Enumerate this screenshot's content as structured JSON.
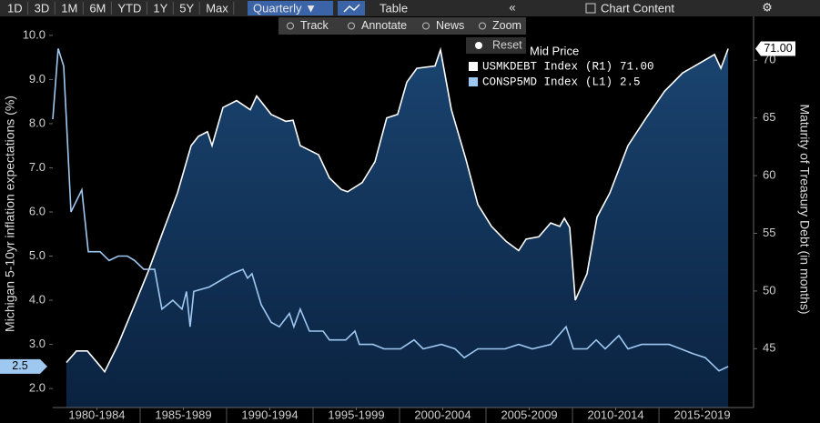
{
  "toolbar": {
    "ranges": [
      "1D",
      "3D",
      "1M",
      "6M",
      "YTD",
      "1Y",
      "5Y",
      "Max"
    ],
    "period": "Quarterly ▼",
    "table": "Table",
    "collapse": "«",
    "chart_content": "Chart Content",
    "settings": "⚙",
    "tools": [
      "Track",
      "Annotate",
      "News",
      "Zoom"
    ],
    "reset": "Reset"
  },
  "chart_data": {
    "type": "line",
    "legend_title": "Mid Price",
    "ylabel": "Michigan 5-10yr inflation expectations (%)",
    "y2label": "Maturity of Treasury Debt (in months)",
    "xlim": [
      1979.95,
      2020.47
    ],
    "xticks": [
      {
        "value": 1982.5,
        "label": "1980-1984"
      },
      {
        "value": 1987.5,
        "label": "1985-1989"
      },
      {
        "value": 1992.5,
        "label": "1990-1994"
      },
      {
        "value": 1997.5,
        "label": "1995-1999"
      },
      {
        "value": 2002.5,
        "label": "2000-2004"
      },
      {
        "value": 2007.5,
        "label": "2005-2009"
      },
      {
        "value": 2012.5,
        "label": "2010-2014"
      },
      {
        "value": 2017.5,
        "label": "2015-2019"
      }
    ],
    "ylim": [
      1.57,
      10.43
    ],
    "yticks": [
      {
        "value": 2,
        "label": "2.0"
      },
      {
        "value": 3,
        "label": "3.0"
      },
      {
        "value": 4,
        "label": "4.0"
      },
      {
        "value": 5,
        "label": "5.0"
      },
      {
        "value": 6,
        "label": "6.0"
      },
      {
        "value": 7,
        "label": "7.0"
      },
      {
        "value": 8,
        "label": "8.0"
      },
      {
        "value": 9,
        "label": "9.0"
      },
      {
        "value": 10,
        "label": "10.0"
      }
    ],
    "y2lim": [
      39.9,
      73.8
    ],
    "y2ticks": [
      45,
      50,
      55,
      60,
      65,
      70
    ],
    "series": [
      {
        "name": "USMKDEBT Index",
        "axis_tag": "(R1)",
        "last_label": "71.00",
        "axis": "y2",
        "color": "#ffffff",
        "area": true,
        "x": [
          1980.74,
          1981.32,
          1981.95,
          1982.68,
          1982.95,
          1983.74,
          1984.68,
          1985.47,
          1986.26,
          1987.16,
          1987.95,
          1988.37,
          1988.89,
          1989.16,
          1989.79,
          1990.58,
          1991.37,
          1991.74,
          1992.58,
          1993.42,
          1993.84,
          1994.26,
          1995.32,
          1995.95,
          1996.63,
          1997.0,
          1997.84,
          1998.58,
          1999.26,
          1999.89,
          2000.42,
          2001.0,
          2002.05,
          2002.37,
          2003.0,
          2003.84,
          2004.53,
          2005.32,
          2006.16,
          2006.89,
          2007.32,
          2008.05,
          2008.74,
          2009.26,
          2009.53,
          2009.84,
          2010.16,
          2010.84,
          2011.42,
          2012.16,
          2013.21,
          2014.26,
          2015.32,
          2016.37,
          2017.42,
          2018.21,
          2018.58,
          2019.0
        ],
        "values": [
          43.8,
          44.8,
          44.8,
          43.5,
          43.0,
          45.4,
          48.8,
          51.7,
          54.9,
          58.5,
          62.6,
          63.4,
          63.8,
          62.6,
          65.9,
          66.5,
          65.7,
          66.9,
          65.3,
          64.7,
          64.8,
          62.6,
          61.8,
          59.8,
          58.8,
          58.6,
          59.4,
          61.2,
          65.0,
          65.3,
          68.1,
          69.3,
          69.5,
          70.9,
          65.7,
          61.4,
          57.5,
          55.6,
          54.3,
          53.5,
          54.5,
          54.7,
          55.9,
          55.6,
          56.3,
          55.5,
          49.2,
          51.5,
          56.4,
          58.5,
          62.6,
          65.0,
          67.3,
          68.9,
          69.8,
          70.5,
          69.3,
          71.0
        ]
      },
      {
        "name": "CONSP5MD Index",
        "axis_tag": "(L1)",
        "last_label": "2.5",
        "color": "#9fc8f0",
        "area": false,
        "x": [
          1979.95,
          1980.26,
          1980.58,
          1981.0,
          1981.63,
          1982.0,
          1982.68,
          1983.21,
          1983.74,
          1984.26,
          1984.68,
          1985.21,
          1985.84,
          1986.26,
          1986.89,
          1987.42,
          1987.68,
          1987.89,
          1988.1,
          1989.0,
          1990.32,
          1990.95,
          1991.21,
          1991.47,
          1992.0,
          1992.58,
          1993.05,
          1993.63,
          1993.89,
          1994.26,
          1994.79,
          1995.58,
          1995.95,
          1996.89,
          1997.42,
          1997.68,
          1998.47,
          1999.1,
          2000.05,
          2000.84,
          2001.37,
          2002.42,
          2003.21,
          2003.74,
          2004.53,
          2005.32,
          2006.1,
          2006.89,
          2007.68,
          2008.74,
          2009.63,
          2010.05,
          2010.84,
          2011.37,
          2011.89,
          2012.68,
          2013.21,
          2014.0,
          2014.79,
          2015.58,
          2016.26,
          2016.89,
          2017.68,
          2018.47,
          2019.0
        ],
        "values": [
          8.1,
          9.7,
          9.3,
          6.0,
          6.5,
          5.1,
          5.1,
          4.9,
          5.0,
          5.0,
          4.9,
          4.7,
          4.7,
          3.8,
          4.0,
          3.8,
          4.2,
          3.4,
          4.2,
          4.3,
          4.6,
          4.7,
          4.5,
          4.6,
          3.9,
          3.5,
          3.4,
          3.7,
          3.4,
          3.8,
          3.3,
          3.3,
          3.1,
          3.1,
          3.3,
          3.0,
          3.0,
          2.9,
          2.9,
          3.1,
          2.9,
          3.0,
          2.9,
          2.7,
          2.9,
          2.9,
          2.9,
          3.0,
          2.9,
          3.0,
          3.4,
          2.9,
          2.9,
          3.1,
          2.9,
          3.2,
          2.9,
          3.0,
          3.0,
          3.0,
          2.9,
          2.8,
          2.7,
          2.4,
          2.5
        ]
      }
    ]
  }
}
